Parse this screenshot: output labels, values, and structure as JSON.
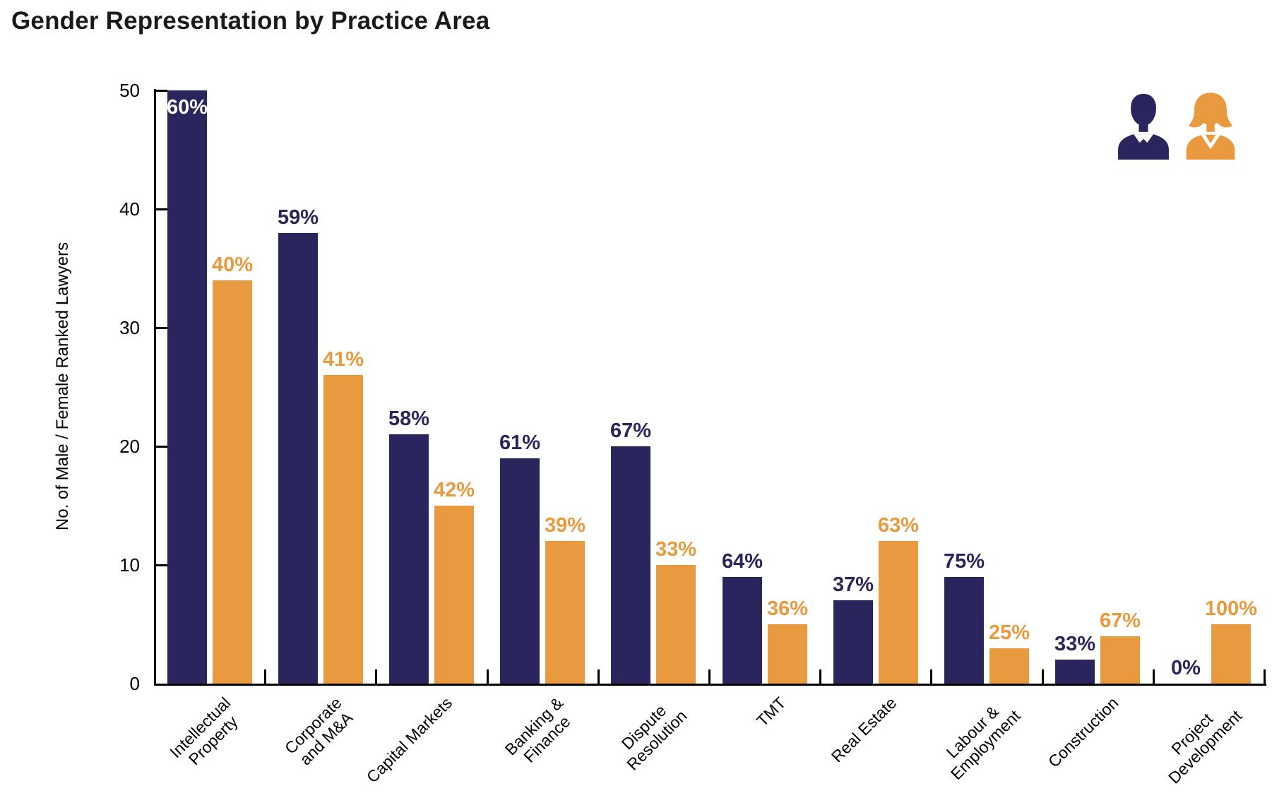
{
  "title": "Gender Representation by Practice Area",
  "colors": {
    "male": "#2A255C",
    "female": "#E9993E",
    "title_text": "#1a1a1a",
    "axis": "#000000",
    "background": "#ffffff"
  },
  "legend": [
    {
      "name": "Male",
      "icon": "male-person-icon",
      "color": "#2A255C"
    },
    {
      "name": "Female",
      "icon": "female-person-icon",
      "color": "#E9993E"
    }
  ],
  "chart_data": {
    "type": "bar",
    "title": "Gender Representation by Practice Area",
    "xlabel": "",
    "ylabel": "No. of Male / Female Ranked Lawyers",
    "ylim": [
      0,
      50
    ],
    "yticks": [
      0,
      10,
      20,
      30,
      40,
      50
    ],
    "ytick_labels": [
      "0",
      "10",
      "20",
      "30",
      "40",
      "50"
    ],
    "grid": "off",
    "legend_position": "top-right",
    "categories": [
      "Intellectual Property",
      "Corporate and M&A",
      "Capital Markets",
      "Banking & Finance",
      "Dispute Resolution",
      "TMT",
      "Real Estate",
      "Labour & Employment",
      "Construction",
      "Project Development"
    ],
    "category_lines": [
      [
        "Intellectual",
        "Property"
      ],
      [
        "Corporate",
        "and M&A"
      ],
      [
        "Capital Markets"
      ],
      [
        "Banking &",
        "Finance"
      ],
      [
        "Dispute",
        "Resolution"
      ],
      [
        "TMT"
      ],
      [
        "Real Estate"
      ],
      [
        "Labour &",
        "Employment"
      ],
      [
        "Construction"
      ],
      [
        "Project",
        "Development"
      ]
    ],
    "series": [
      {
        "name": "Male",
        "color": "#2A255C",
        "values": [
          50,
          38,
          21,
          19,
          20,
          9,
          7,
          9,
          2,
          0
        ],
        "pct_labels": [
          "60%",
          "59%",
          "58%",
          "61%",
          "67%",
          "64%",
          "37%",
          "75%",
          "33%",
          "0%"
        ]
      },
      {
        "name": "Female",
        "color": "#E9993E",
        "values": [
          34,
          26,
          15,
          12,
          10,
          5,
          12,
          3,
          4,
          5
        ],
        "pct_labels": [
          "40%",
          "41%",
          "42%",
          "39%",
          "33%",
          "36%",
          "63%",
          "25%",
          "67%",
          "100%"
        ]
      }
    ]
  }
}
